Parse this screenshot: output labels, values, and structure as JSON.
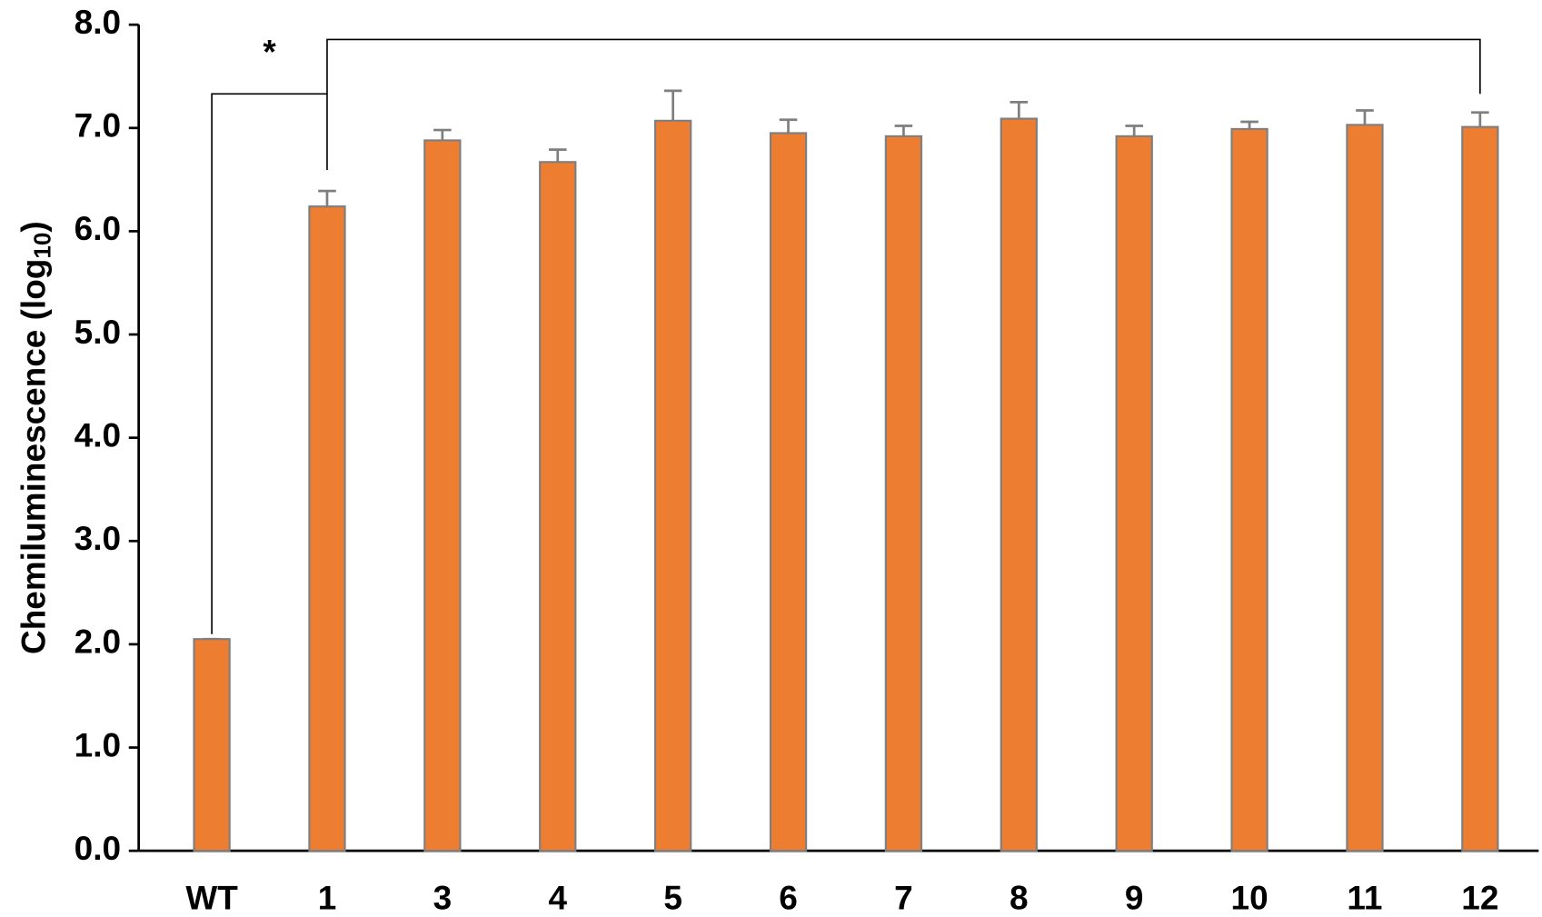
{
  "chart_data": {
    "type": "bar",
    "y_label": {
      "text": "Chemiluminescence (log",
      "subscript": "10",
      "suffix": ")"
    },
    "annotation": "*",
    "categories": [
      "WT",
      "1",
      "3",
      "4",
      "5",
      "6",
      "7",
      "8",
      "9",
      "10",
      "11",
      "12"
    ],
    "values": [
      2.05,
      6.24,
      6.88,
      6.67,
      7.07,
      6.95,
      6.92,
      7.09,
      6.92,
      6.99,
      7.03,
      7.01
    ],
    "errors": [
      0.0,
      0.15,
      0.1,
      0.12,
      0.29,
      0.13,
      0.1,
      0.16,
      0.1,
      0.07,
      0.14,
      0.14
    ],
    "color": "#ed7d31",
    "ylim": [
      0,
      8
    ],
    "yticks": [
      {
        "value": 0,
        "label": "0.0"
      },
      {
        "value": 1,
        "label": "1.0"
      },
      {
        "value": 2,
        "label": "2.0"
      },
      {
        "value": 3,
        "label": "3.0"
      },
      {
        "value": 4,
        "label": "4.0"
      },
      {
        "value": 5,
        "label": "5.0"
      },
      {
        "value": 6,
        "label": "6.0"
      },
      {
        "value": 7,
        "label": "7.0"
      },
      {
        "value": 8,
        "label": "8.0"
      }
    ],
    "grid": false
  }
}
